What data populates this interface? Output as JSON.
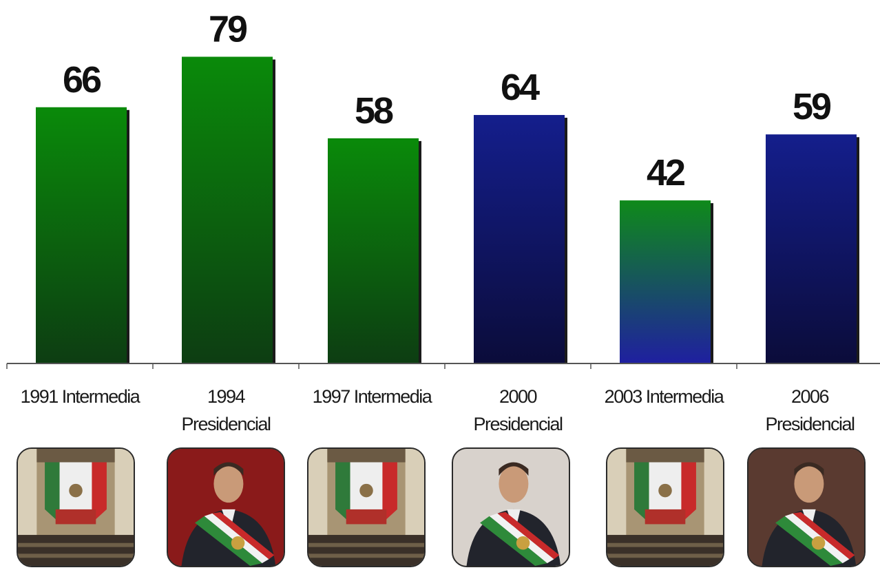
{
  "chart_data": {
    "type": "bar",
    "categories": [
      "1991 Intermedia",
      "1994 Presidencial",
      "1997 Intermedia",
      "2000 Presidencial",
      "2003 Intermedia",
      "2006 Presidencial"
    ],
    "category_lines": [
      [
        "1991 Intermedia"
      ],
      [
        "1994",
        "Presidencial"
      ],
      [
        "1997 Intermedia"
      ],
      [
        "2000",
        "Presidencial"
      ],
      [
        "2003 Intermedia"
      ],
      [
        "2006",
        "Presidencial"
      ]
    ],
    "values": [
      66,
      79,
      58,
      64,
      42,
      59
    ],
    "bar_colors": [
      [
        "#0a8a0a",
        "#0d3d12"
      ],
      [
        "#0a8a0a",
        "#0d3d12"
      ],
      [
        "#0a8a0a",
        "#0d3d12"
      ],
      [
        "#141e8c",
        "#0b0c3a"
      ],
      [
        "#0f8a1a",
        "#1f1fa0"
      ],
      [
        "#141e8c",
        "#0b0c3a"
      ]
    ],
    "ylim": [
      0,
      85
    ],
    "grid": false,
    "title": "",
    "xlabel": "",
    "ylabel": ""
  },
  "photos": [
    {
      "kind": "chamber",
      "icon": "congress-chamber-photo"
    },
    {
      "kind": "president",
      "icon": "president-portrait-photo"
    },
    {
      "kind": "chamber",
      "icon": "congress-chamber-photo"
    },
    {
      "kind": "president-flag",
      "icon": "president-portrait-photo"
    },
    {
      "kind": "chamber",
      "icon": "congress-chamber-photo"
    },
    {
      "kind": "president-crowd",
      "icon": "president-portrait-photo"
    }
  ]
}
